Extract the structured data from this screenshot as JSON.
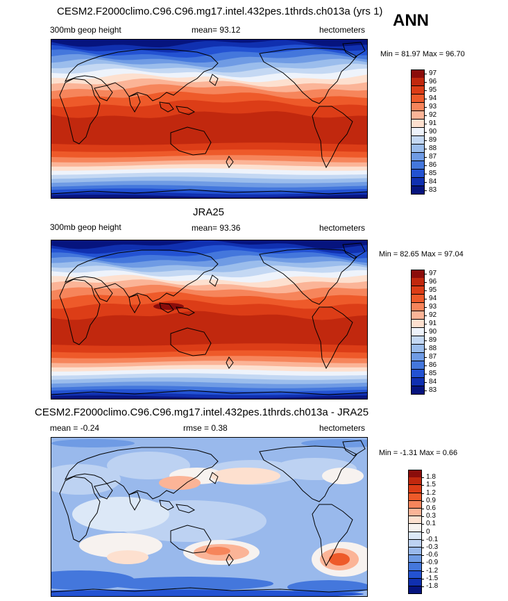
{
  "season": "ANN",
  "panels": [
    {
      "id": "model",
      "title": "CESM2.F2000climo.C96.C96.mg17.intel.432pes.1thrds.ch013a (yrs 1)",
      "left": "300mb geop height",
      "center": "mean=  93.12",
      "right": "hectometers",
      "minmax": "Min =  81.97 Max =  96.70"
    },
    {
      "id": "obs",
      "title": "JRA25",
      "left": "300mb geop height",
      "center": "mean=  93.36",
      "right": "hectometers",
      "minmax": "Min =  82.65 Max =  97.04"
    },
    {
      "id": "diff",
      "title": "CESM2.F2000climo.C96.C96.mg17.intel.432pes.1thrds.ch013a - JRA25",
      "left": "mean =  -0.24",
      "center": "rmse =   0.38",
      "right": "hectometers",
      "minmax": "Min =  -1.31 Max =   0.66"
    }
  ],
  "chart_data": [
    {
      "type": "heatmap",
      "title": "CESM2.F2000climo.C96.C96.mg17.intel.432pes.1thrds.ch013a (yrs 1)",
      "variable": "300mb geop height",
      "units": "hectometers",
      "mean": 93.12,
      "min": 81.97,
      "max": 96.7,
      "levels": [
        "97",
        "96",
        "95",
        "94",
        "93",
        "92",
        "91",
        "90",
        "89",
        "88",
        "87",
        "86",
        "85",
        "84",
        "83"
      ],
      "colors": [
        "#8b0d0b",
        "#c1280e",
        "#dc3d17",
        "#ee5a2a",
        "#f6855b",
        "#fbb497",
        "#fde0cf",
        "#eef3fb",
        "#c4d8f3",
        "#9bbdec",
        "#6f9be4",
        "#4477dc",
        "#2352d2",
        "#1030b0",
        "#06147e"
      ]
    },
    {
      "type": "heatmap",
      "title": "JRA25",
      "variable": "300mb geop height",
      "units": "hectometers",
      "mean": 93.36,
      "min": 82.65,
      "max": 97.04,
      "levels": [
        "97",
        "96",
        "95",
        "94",
        "93",
        "92",
        "91",
        "90",
        "89",
        "88",
        "87",
        "86",
        "85",
        "84",
        "83"
      ],
      "colors": [
        "#8b0d0b",
        "#c1280e",
        "#dc3d17",
        "#ee5a2a",
        "#f6855b",
        "#fbb497",
        "#fde0cf",
        "#eef3fb",
        "#c4d8f3",
        "#9bbdec",
        "#6f9be4",
        "#4477dc",
        "#2352d2",
        "#1030b0",
        "#06147e"
      ]
    },
    {
      "type": "heatmap",
      "title": "CESM2.F2000climo.C96.C96.mg17.intel.432pes.1thrds.ch013a - JRA25",
      "units": "hectometers",
      "mean": -0.24,
      "rmse": 0.38,
      "min": -1.31,
      "max": 0.66,
      "levels": [
        "1.8",
        "1.5",
        "1.2",
        "0.9",
        "0.6",
        "0.3",
        "0.1",
        "0",
        "-0.1",
        "-0.3",
        "-0.6",
        "-0.9",
        "-1.2",
        "-1.5",
        "-1.8"
      ],
      "colors": [
        "#8b0d0b",
        "#c1280e",
        "#dc3d17",
        "#ee5a2a",
        "#f6855b",
        "#fbb497",
        "#fde0cf",
        "#f7f2ef",
        "#dce8f7",
        "#bdd2f2",
        "#99b9ec",
        "#6f9be4",
        "#4477dc",
        "#2352d2",
        "#1030b0",
        "#06147e"
      ]
    }
  ]
}
